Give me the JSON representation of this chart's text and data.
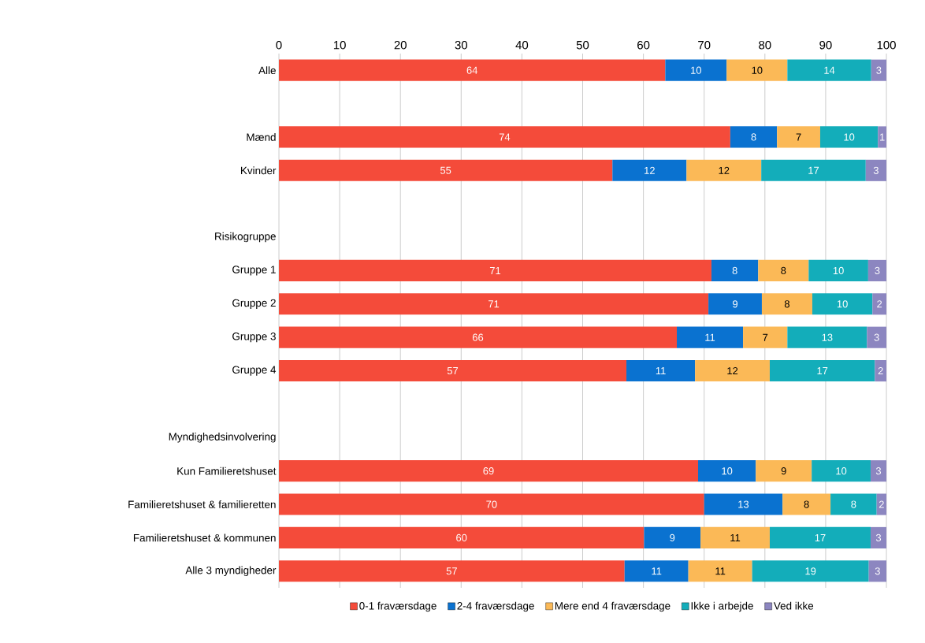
{
  "chart_data": {
    "type": "bar",
    "orientation": "horizontal",
    "stacked": true,
    "categories": [
      "Alle",
      null,
      "Mænd",
      "Kvinder",
      null,
      "Risikogruppe",
      "Gruppe 1",
      "Gruppe 2",
      "Gruppe 3",
      "Gruppe 4",
      null,
      "Myndighedsinvolvering",
      "Kun Familieretshuset",
      "Familieretshuset & familieretten",
      "Familieretshuset & kommunen",
      "Alle 3 myndigheder"
    ],
    "series": [
      {
        "name": "0-1 fraværsdage",
        "color": "#f44b3a",
        "values": [
          63.6,
          null,
          74.3,
          54.9,
          null,
          null,
          71.2,
          70.7,
          65.5,
          57.2,
          null,
          null,
          69.0,
          70.0,
          60.1,
          56.9
        ],
        "value_labels": [
          "64",
          null,
          "74",
          "55",
          null,
          null,
          "71",
          "71",
          "66",
          "57",
          null,
          null,
          "69",
          "70",
          "60",
          "57"
        ]
      },
      {
        "name": "2-4 fraværsdage",
        "color": "#0a72d0",
        "values": [
          10.1,
          null,
          7.7,
          12.2,
          null,
          null,
          7.7,
          8.8,
          10.9,
          11.3,
          null,
          null,
          9.5,
          12.9,
          9.3,
          10.5
        ],
        "value_labels": [
          "10",
          null,
          "8",
          "12",
          null,
          null,
          "8",
          "9",
          "11",
          "11",
          null,
          null,
          "10",
          "13",
          "9",
          "11"
        ]
      },
      {
        "name": "Mere end 4 fraværsdage",
        "color": "#fbb957",
        "values": [
          10.0,
          null,
          7.1,
          12.3,
          null,
          null,
          8.3,
          8.3,
          7.3,
          12.3,
          null,
          null,
          9.2,
          7.9,
          11.4,
          10.5
        ],
        "value_labels": [
          "10",
          null,
          "7",
          "12",
          null,
          null,
          "8",
          "8",
          "7",
          "12",
          null,
          null,
          "9",
          "8",
          "11",
          "11"
        ]
      },
      {
        "name": "Ikke i arbejde",
        "color": "#13adba",
        "values": [
          13.8,
          null,
          9.5,
          17.2,
          null,
          null,
          9.8,
          9.9,
          13.1,
          17.3,
          null,
          null,
          9.7,
          7.6,
          16.6,
          19.2
        ],
        "value_labels": [
          "14",
          null,
          "10",
          "17",
          null,
          null,
          "10",
          "10",
          "13",
          "17",
          null,
          null,
          "10",
          "8",
          "17",
          "19"
        ]
      },
      {
        "name": "Ved ikke",
        "color": "#8c86c0",
        "values": [
          2.5,
          null,
          1.4,
          3.4,
          null,
          null,
          3.0,
          2.3,
          3.2,
          1.9,
          null,
          null,
          2.6,
          1.6,
          2.6,
          2.9
        ],
        "value_labels": [
          "3",
          null,
          "1",
          "3",
          null,
          null,
          "3",
          "2",
          "3",
          "2",
          null,
          null,
          "3",
          "2",
          "3",
          "3"
        ]
      }
    ],
    "xlim": [
      0,
      100
    ],
    "xticks": [
      0,
      10,
      20,
      30,
      40,
      50,
      60,
      70,
      80,
      90,
      100
    ],
    "grid": "x",
    "legend": "bottom"
  }
}
